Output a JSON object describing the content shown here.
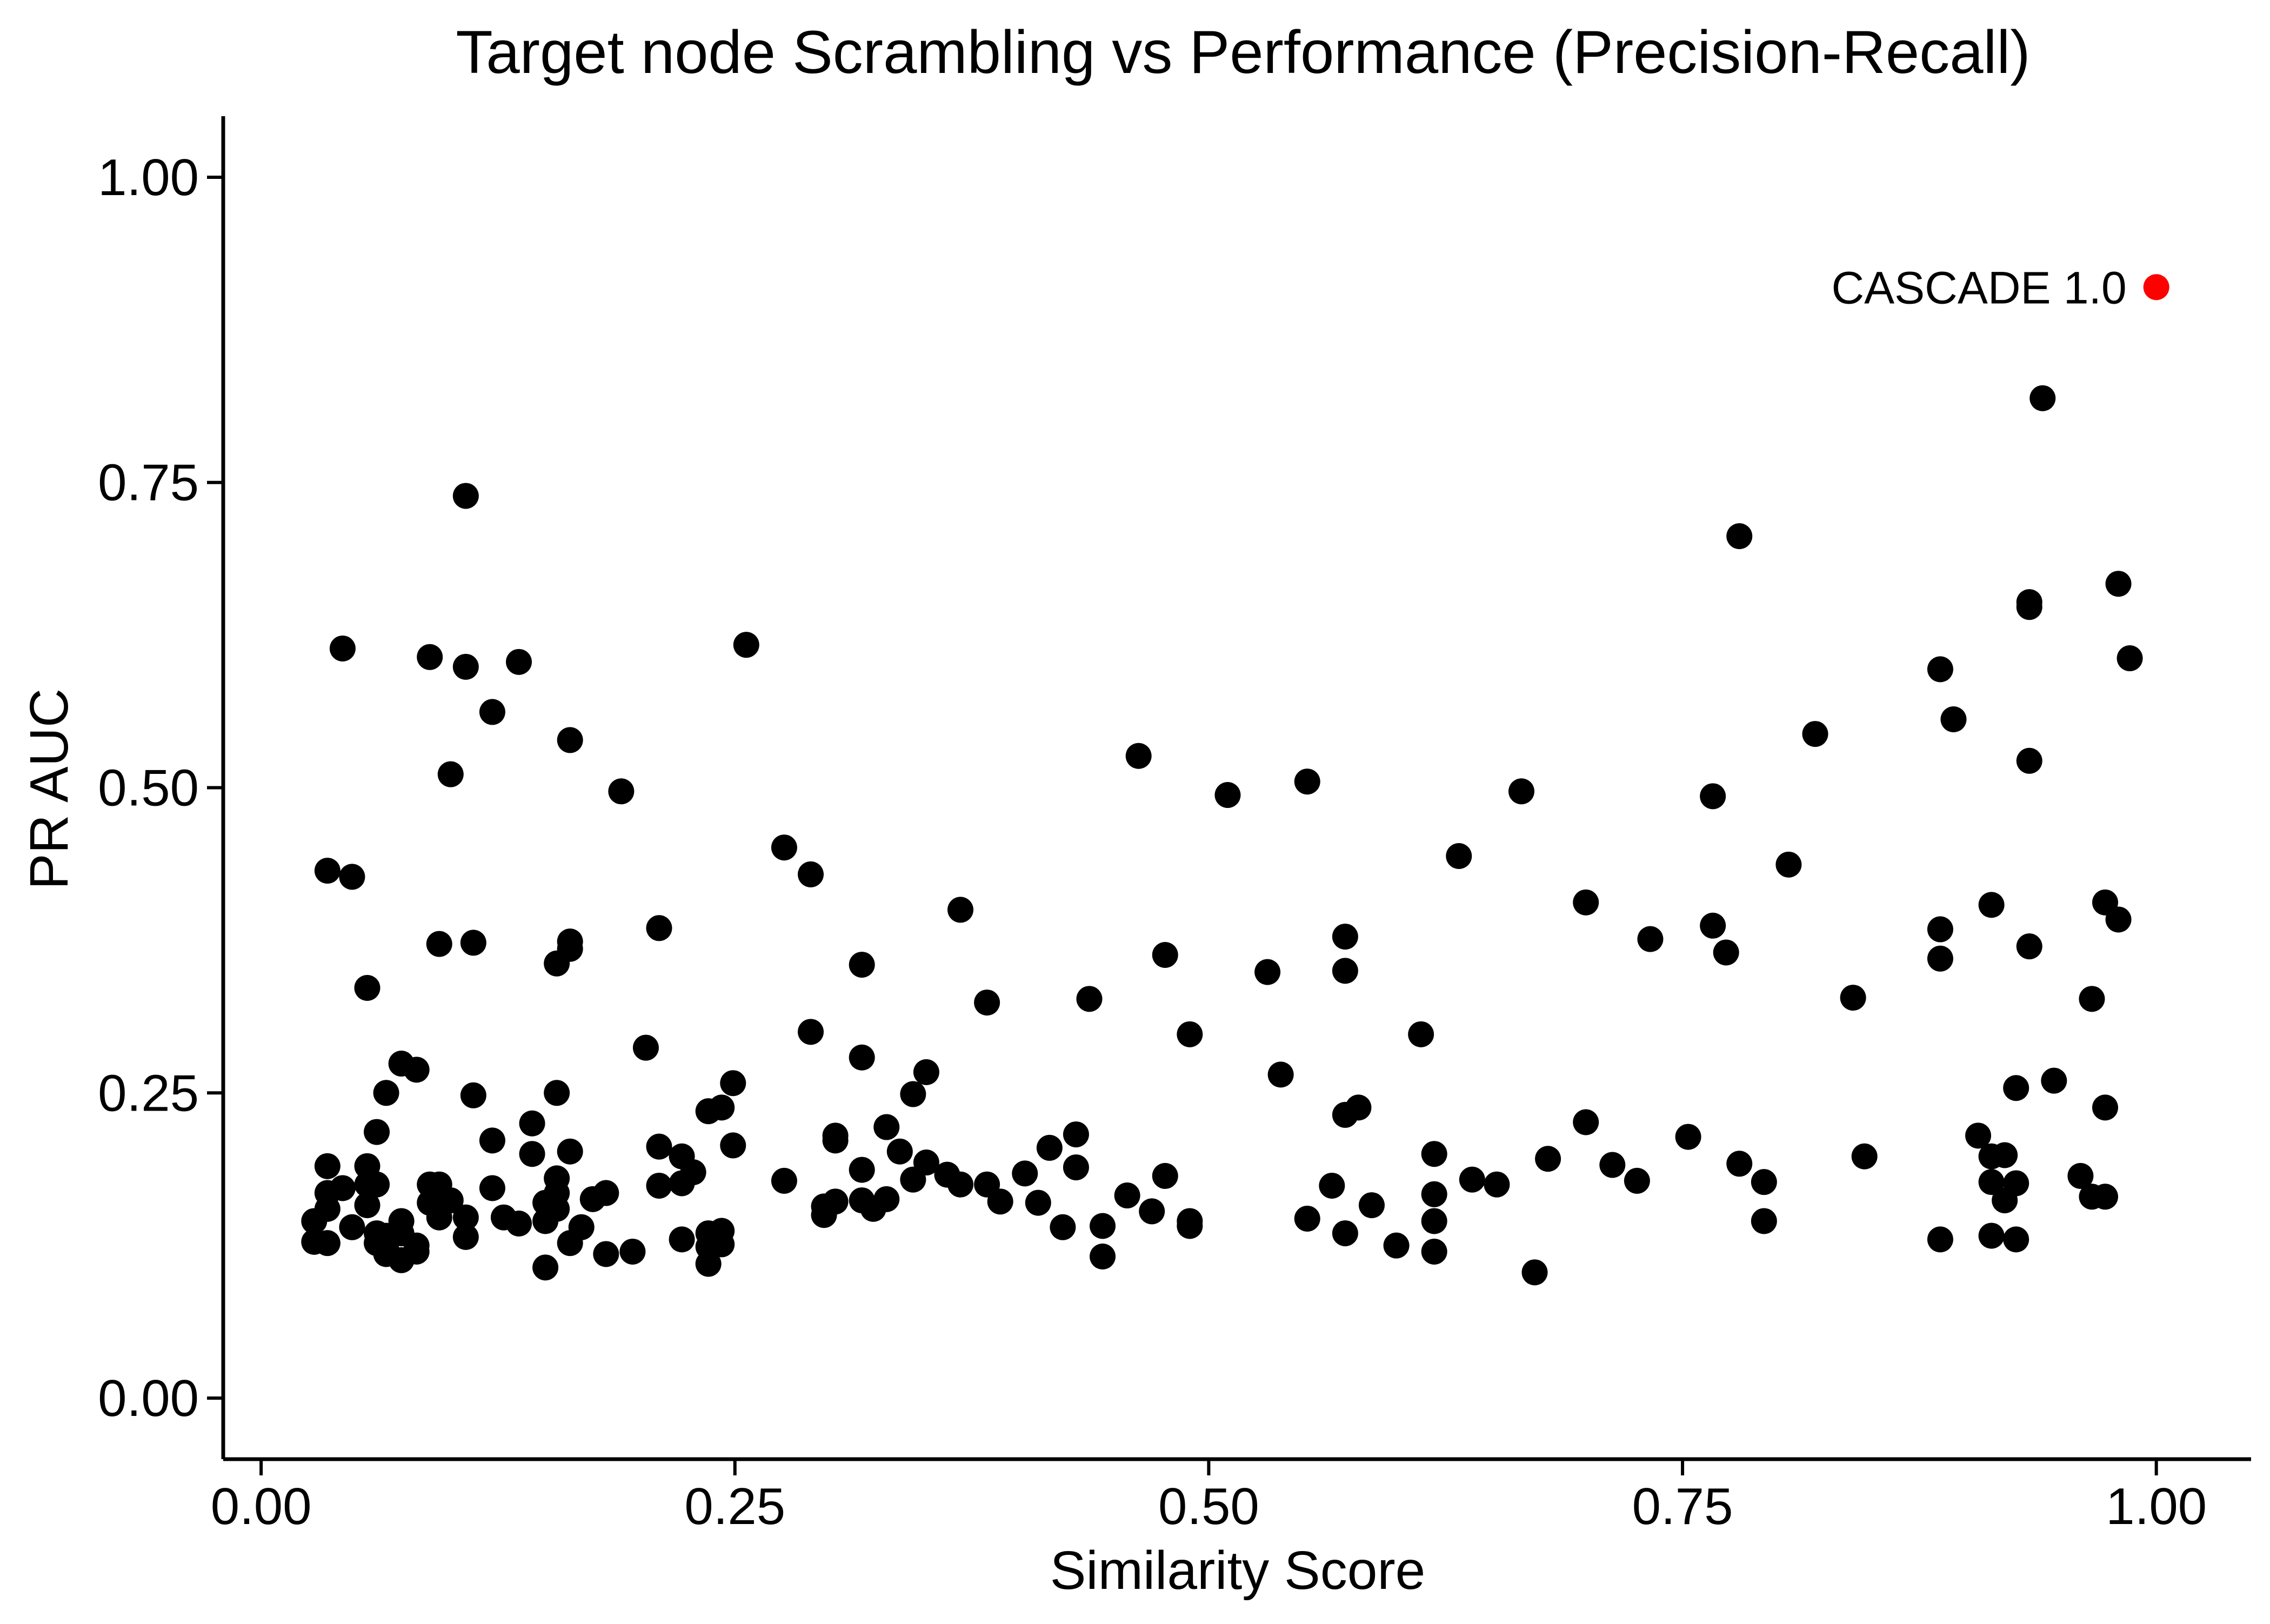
{
  "chart_data": {
    "type": "scatter",
    "title": "Target node Scrambling vs Performance (Precision-Recall)",
    "xlabel": "Similarity Score",
    "ylabel": "PR AUC",
    "xlim": [
      -0.02,
      1.05
    ],
    "ylim": [
      -0.05,
      1.05
    ],
    "x_ticks": [
      0.0,
      0.25,
      0.5,
      0.75,
      1.0
    ],
    "x_tick_labels": [
      "0.00",
      "0.25",
      "0.50",
      "0.75",
      "1.00"
    ],
    "y_ticks": [
      0.0,
      0.25,
      0.5,
      0.75,
      1.0
    ],
    "y_tick_labels": [
      "0.00",
      "0.25",
      "0.50",
      "0.75",
      "1.00"
    ],
    "grid": false,
    "series": [
      {
        "color": "#000000",
        "points": [
          [
            0.028,
            0.145
          ],
          [
            0.028,
            0.128
          ],
          [
            0.035,
            0.432
          ],
          [
            0.035,
            0.19
          ],
          [
            0.035,
            0.168
          ],
          [
            0.035,
            0.155
          ],
          [
            0.035,
            0.127
          ],
          [
            0.043,
            0.614
          ],
          [
            0.043,
            0.172
          ],
          [
            0.048,
            0.427
          ],
          [
            0.048,
            0.14
          ],
          [
            0.056,
            0.336
          ],
          [
            0.056,
            0.19
          ],
          [
            0.056,
            0.175
          ],
          [
            0.056,
            0.158
          ],
          [
            0.061,
            0.218
          ],
          [
            0.061,
            0.175
          ],
          [
            0.061,
            0.135
          ],
          [
            0.061,
            0.127
          ],
          [
            0.066,
            0.25
          ],
          [
            0.066,
            0.133
          ],
          [
            0.066,
            0.122
          ],
          [
            0.066,
            0.118
          ],
          [
            0.074,
            0.274
          ],
          [
            0.074,
            0.145
          ],
          [
            0.074,
            0.135
          ],
          [
            0.074,
            0.113
          ],
          [
            0.082,
            0.269
          ],
          [
            0.082,
            0.125
          ],
          [
            0.082,
            0.12
          ],
          [
            0.089,
            0.607
          ],
          [
            0.089,
            0.175
          ],
          [
            0.089,
            0.16
          ],
          [
            0.094,
            0.372
          ],
          [
            0.094,
            0.175
          ],
          [
            0.094,
            0.148
          ],
          [
            0.1,
            0.511
          ],
          [
            0.1,
            0.162
          ],
          [
            0.108,
            0.739
          ],
          [
            0.108,
            0.599
          ],
          [
            0.108,
            0.148
          ],
          [
            0.108,
            0.132
          ],
          [
            0.112,
            0.373
          ],
          [
            0.112,
            0.248
          ],
          [
            0.122,
            0.562
          ],
          [
            0.122,
            0.211
          ],
          [
            0.122,
            0.172
          ],
          [
            0.128,
            0.148
          ],
          [
            0.136,
            0.603
          ],
          [
            0.136,
            0.143
          ],
          [
            0.143,
            0.225
          ],
          [
            0.143,
            0.2
          ],
          [
            0.15,
            0.16
          ],
          [
            0.15,
            0.145
          ],
          [
            0.15,
            0.107
          ],
          [
            0.156,
            0.356
          ],
          [
            0.156,
            0.25
          ],
          [
            0.156,
            0.18
          ],
          [
            0.156,
            0.168
          ],
          [
            0.156,
            0.155
          ],
          [
            0.163,
            0.539
          ],
          [
            0.163,
            0.374
          ],
          [
            0.163,
            0.368
          ],
          [
            0.163,
            0.202
          ],
          [
            0.163,
            0.127
          ],
          [
            0.169,
            0.14
          ],
          [
            0.175,
            0.163
          ],
          [
            0.182,
            0.168
          ],
          [
            0.182,
            0.118
          ],
          [
            0.19,
            0.497
          ],
          [
            0.196,
            0.12
          ],
          [
            0.203,
            0.287
          ],
          [
            0.21,
            0.385
          ],
          [
            0.21,
            0.206
          ],
          [
            0.21,
            0.174
          ],
          [
            0.222,
            0.198
          ],
          [
            0.222,
            0.176
          ],
          [
            0.222,
            0.13
          ],
          [
            0.228,
            0.185
          ],
          [
            0.236,
            0.235
          ],
          [
            0.236,
            0.135
          ],
          [
            0.236,
            0.124
          ],
          [
            0.236,
            0.11
          ],
          [
            0.243,
            0.238
          ],
          [
            0.243,
            0.137
          ],
          [
            0.243,
            0.126
          ],
          [
            0.249,
            0.258
          ],
          [
            0.249,
            0.207
          ],
          [
            0.256,
            0.617
          ],
          [
            0.276,
            0.451
          ],
          [
            0.276,
            0.178
          ],
          [
            0.29,
            0.429
          ],
          [
            0.29,
            0.3
          ],
          [
            0.297,
            0.157
          ],
          [
            0.297,
            0.15
          ],
          [
            0.303,
            0.215
          ],
          [
            0.303,
            0.211
          ],
          [
            0.303,
            0.161
          ],
          [
            0.317,
            0.355
          ],
          [
            0.317,
            0.279
          ],
          [
            0.317,
            0.187
          ],
          [
            0.317,
            0.162
          ],
          [
            0.323,
            0.155
          ],
          [
            0.33,
            0.222
          ],
          [
            0.33,
            0.163
          ],
          [
            0.337,
            0.202
          ],
          [
            0.344,
            0.249
          ],
          [
            0.344,
            0.179
          ],
          [
            0.351,
            0.267
          ],
          [
            0.351,
            0.193
          ],
          [
            0.362,
            0.183
          ],
          [
            0.369,
            0.4
          ],
          [
            0.369,
            0.175
          ],
          [
            0.383,
            0.324
          ],
          [
            0.383,
            0.175
          ],
          [
            0.39,
            0.161
          ],
          [
            0.403,
            0.184
          ],
          [
            0.41,
            0.16
          ],
          [
            0.416,
            0.205
          ],
          [
            0.423,
            0.14
          ],
          [
            0.43,
            0.216
          ],
          [
            0.43,
            0.189
          ],
          [
            0.437,
            0.327
          ],
          [
            0.444,
            0.141
          ],
          [
            0.444,
            0.116
          ],
          [
            0.457,
            0.166
          ],
          [
            0.463,
            0.526
          ],
          [
            0.47,
            0.153
          ],
          [
            0.477,
            0.363
          ],
          [
            0.477,
            0.182
          ],
          [
            0.49,
            0.298
          ],
          [
            0.49,
            0.145
          ],
          [
            0.49,
            0.141
          ],
          [
            0.51,
            0.494
          ],
          [
            0.531,
            0.349
          ],
          [
            0.538,
            0.265
          ],
          [
            0.552,
            0.505
          ],
          [
            0.552,
            0.147
          ],
          [
            0.565,
            0.174
          ],
          [
            0.572,
            0.378
          ],
          [
            0.572,
            0.35
          ],
          [
            0.572,
            0.232
          ],
          [
            0.572,
            0.135
          ],
          [
            0.579,
            0.238
          ],
          [
            0.586,
            0.158
          ],
          [
            0.599,
            0.125
          ],
          [
            0.612,
            0.298
          ],
          [
            0.619,
            0.2
          ],
          [
            0.619,
            0.167
          ],
          [
            0.619,
            0.145
          ],
          [
            0.619,
            0.12
          ],
          [
            0.632,
            0.444
          ],
          [
            0.639,
            0.179
          ],
          [
            0.652,
            0.175
          ],
          [
            0.665,
            0.497
          ],
          [
            0.672,
            0.103
          ],
          [
            0.679,
            0.196
          ],
          [
            0.699,
            0.406
          ],
          [
            0.699,
            0.226
          ],
          [
            0.713,
            0.191
          ],
          [
            0.726,
            0.178
          ],
          [
            0.733,
            0.376
          ],
          [
            0.753,
            0.214
          ],
          [
            0.766,
            0.493
          ],
          [
            0.766,
            0.387
          ],
          [
            0.773,
            0.365
          ],
          [
            0.78,
            0.706
          ],
          [
            0.78,
            0.192
          ],
          [
            0.793,
            0.177
          ],
          [
            0.793,
            0.145
          ],
          [
            0.806,
            0.437
          ],
          [
            0.82,
            0.544
          ],
          [
            0.84,
            0.328
          ],
          [
            0.846,
            0.198
          ],
          [
            0.886,
            0.597
          ],
          [
            0.886,
            0.384
          ],
          [
            0.886,
            0.36
          ],
          [
            0.886,
            0.13
          ],
          [
            0.893,
            0.556
          ],
          [
            0.906,
            0.215
          ],
          [
            0.913,
            0.404
          ],
          [
            0.913,
            0.198
          ],
          [
            0.913,
            0.177
          ],
          [
            0.913,
            0.133
          ],
          [
            0.92,
            0.199
          ],
          [
            0.92,
            0.162
          ],
          [
            0.926,
            0.254
          ],
          [
            0.926,
            0.176
          ],
          [
            0.926,
            0.13
          ],
          [
            0.933,
            0.652
          ],
          [
            0.933,
            0.648
          ],
          [
            0.933,
            0.522
          ],
          [
            0.933,
            0.37
          ],
          [
            0.94,
            0.819
          ],
          [
            0.946,
            0.26
          ],
          [
            0.96,
            0.182
          ],
          [
            0.966,
            0.327
          ],
          [
            0.966,
            0.165
          ],
          [
            0.973,
            0.406
          ],
          [
            0.973,
            0.238
          ],
          [
            0.973,
            0.165
          ],
          [
            0.98,
            0.667
          ],
          [
            0.98,
            0.392
          ],
          [
            0.986,
            0.606
          ]
        ]
      },
      {
        "color": "#ff0000",
        "points": [
          [
            1.0,
            0.91
          ]
        ],
        "label": "CASCADE 1.0"
      }
    ]
  }
}
